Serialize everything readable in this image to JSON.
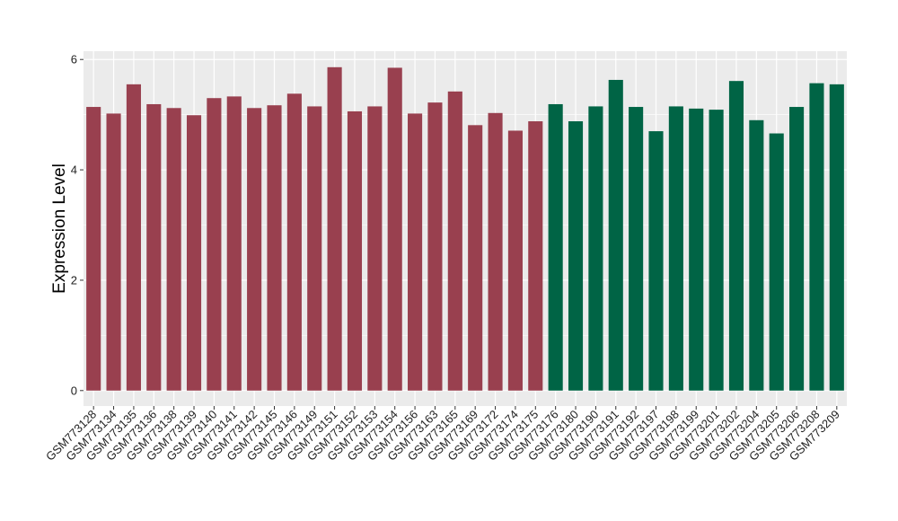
{
  "chart_data": {
    "type": "bar",
    "ylabel": "Expression Level",
    "xlabel": "",
    "ylim": [
      -0.28,
      6.15
    ],
    "yticks": [
      0,
      2,
      4,
      6
    ],
    "grid": true,
    "panel_background": "#ebebeb",
    "grid_color": "#ffffff",
    "colors": [
      "#99404f",
      "#006445"
    ],
    "categories": [
      "GSM773128",
      "GSM773134",
      "GSM773135",
      "GSM773136",
      "GSM773138",
      "GSM773139",
      "GSM773140",
      "GSM773141",
      "GSM773142",
      "GSM773145",
      "GSM773146",
      "GSM773149",
      "GSM773151",
      "GSM773152",
      "GSM773153",
      "GSM773154",
      "GSM773156",
      "GSM773163",
      "GSM773165",
      "GSM773169",
      "GSM773172",
      "GSM773174",
      "GSM773175",
      "GSM773176",
      "GSM773180",
      "GSM773190",
      "GSM773191",
      "GSM773192",
      "GSM773197",
      "GSM773198",
      "GSM773199",
      "GSM773201",
      "GSM773202",
      "GSM773204",
      "GSM773205",
      "GSM773206",
      "GSM773208",
      "GSM773209"
    ],
    "values": [
      5.14,
      5.02,
      5.55,
      5.19,
      5.12,
      4.99,
      5.3,
      5.33,
      5.12,
      5.17,
      5.38,
      5.15,
      5.86,
      5.06,
      5.15,
      5.85,
      5.02,
      5.22,
      5.42,
      4.81,
      5.03,
      4.71,
      4.88,
      5.19,
      4.88,
      5.15,
      5.63,
      5.14,
      4.7,
      5.15,
      5.11,
      5.09,
      5.61,
      4.9,
      4.66,
      5.14,
      5.57,
      5.55
    ],
    "groups": [
      0,
      0,
      0,
      0,
      0,
      0,
      0,
      0,
      0,
      0,
      0,
      0,
      0,
      0,
      0,
      0,
      0,
      0,
      0,
      0,
      0,
      0,
      0,
      1,
      1,
      1,
      1,
      1,
      1,
      1,
      1,
      1,
      1,
      1,
      1,
      1,
      1,
      1
    ]
  }
}
